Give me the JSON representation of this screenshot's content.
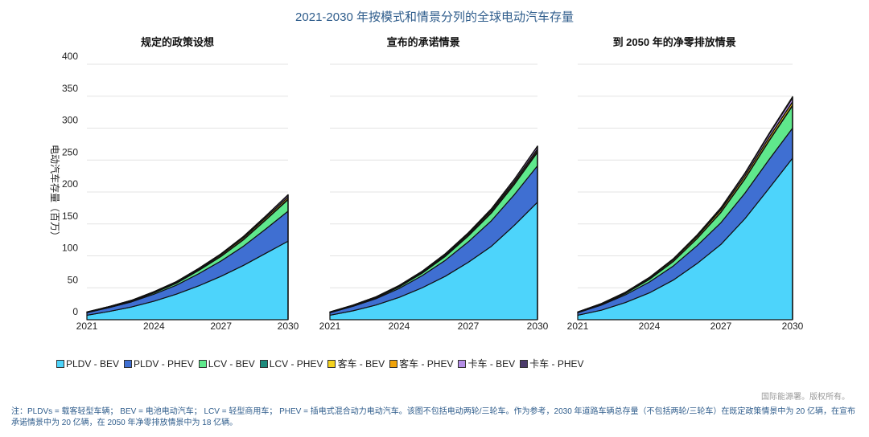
{
  "title": "2021-2030 年按模式和情景分列的全球电动汽车存量",
  "copyright": "国际能源署。版权所有。",
  "note": "注：PLDVs = 载客轻型车辆； BEV = 电池电动汽车； LCV = 轻型商用车； PHEV = 插电式混合动力电动汽车。该图不包括电动两轮/三轮车。作为参考，2030 年道路车辆总存量（不包括两轮/三轮车）在既定政策情景中为 20 亿辆，在宣布承诺情景中为 20 亿辆，在 2050 年净零排放情景中为 18 亿辆。",
  "chart_data": {
    "type": "area",
    "stacked": true,
    "ylabel": "电动汽车存量（百万）",
    "ylim": [
      0,
      400
    ],
    "yticks": [
      0,
      50,
      100,
      150,
      200,
      250,
      300,
      350,
      400
    ],
    "x": [
      2021,
      2022,
      2023,
      2024,
      2025,
      2026,
      2027,
      2028,
      2029,
      2030
    ],
    "xticks": [
      2021,
      2024,
      2027,
      2030
    ],
    "grid": true,
    "legend_position": "bottom",
    "legend": [
      {
        "name": "PLDV - BEV",
        "color": "#4dd4fb"
      },
      {
        "name": "PLDV - PHEV",
        "color": "#3f6fd2"
      },
      {
        "name": "LCV - BEV",
        "color": "#5fe88c"
      },
      {
        "name": "LCV - PHEV",
        "color": "#1d8a7c"
      },
      {
        "name": "客车 - BEV",
        "color": "#f4d21e"
      },
      {
        "name": "客车 - PHEV",
        "color": "#f0a30a"
      },
      {
        "name": "卡车 - BEV",
        "color": "#b48ee6"
      },
      {
        "name": "卡车 - PHEV",
        "color": "#4b3b6b"
      }
    ],
    "panels": [
      {
        "title": "规定的政策设想",
        "series": [
          [
            7,
            13,
            20,
            29,
            40,
            53,
            68,
            85,
            104,
            123
          ],
          [
            4,
            6,
            8,
            11,
            14,
            19,
            24,
            30,
            38,
            47
          ],
          [
            0.3,
            0.6,
            1,
            2,
            3,
            5,
            7,
            10,
            14,
            18
          ],
          [
            0.1,
            0.1,
            0.2,
            0.3,
            0.4,
            0.5,
            0.6,
            0.7,
            0.8,
            1
          ],
          [
            0.6,
            0.8,
            1,
            1.2,
            1.5,
            1.8,
            2.1,
            2.4,
            2.7,
            3
          ],
          [
            0.1,
            0.1,
            0.1,
            0.1,
            0.2,
            0.2,
            0.2,
            0.3,
            0.3,
            0.3
          ],
          [
            0.1,
            0.1,
            0.2,
            0.3,
            0.5,
            0.8,
            1.2,
            1.7,
            2.3,
            3
          ],
          [
            0,
            0,
            0,
            0.1,
            0.1,
            0.1,
            0.2,
            0.3,
            0.4,
            0.5
          ]
        ]
      },
      {
        "title": "宣布的承诺情景",
        "series": [
          [
            7,
            14,
            23,
            35,
            50,
            68,
            90,
            115,
            148,
            184
          ],
          [
            4,
            7,
            10,
            14,
            19,
            25,
            32,
            40,
            48,
            57
          ],
          [
            0.3,
            0.7,
            1.3,
            2.3,
            3.8,
            6,
            9,
            12,
            16,
            21
          ],
          [
            0.1,
            0.2,
            0.3,
            0.4,
            0.6,
            0.8,
            1,
            1.3,
            1.6,
            2
          ],
          [
            0.6,
            0.8,
            1,
            1.3,
            1.6,
            1.9,
            2.2,
            2.5,
            2.8,
            3
          ],
          [
            0.1,
            0.1,
            0.1,
            0.2,
            0.2,
            0.3,
            0.3,
            0.4,
            0.4,
            0.5
          ],
          [
            0.1,
            0.1,
            0.2,
            0.4,
            0.7,
            1.1,
            1.6,
            2.3,
            3.1,
            4
          ],
          [
            0,
            0,
            0,
            0.1,
            0.1,
            0.2,
            0.2,
            0.3,
            0.4,
            0.5
          ]
        ]
      },
      {
        "title": "到 2050 年的净零排放情景",
        "series": [
          [
            7,
            15,
            27,
            42,
            62,
            88,
            118,
            158,
            205,
            253
          ],
          [
            4,
            8,
            12,
            17,
            22,
            28,
            34,
            40,
            45,
            47
          ],
          [
            0.3,
            1,
            2,
            4,
            7,
            11,
            16,
            22,
            29,
            35
          ],
          [
            0.1,
            0.2,
            0.3,
            0.4,
            0.5,
            0.6,
            0.7,
            0.8,
            0.9,
            1
          ],
          [
            0.6,
            0.9,
            1.3,
            1.8,
            2.3,
            2.8,
            3.4,
            4,
            4.5,
            5
          ],
          [
            0.1,
            0.1,
            0.1,
            0.2,
            0.2,
            0.2,
            0.3,
            0.3,
            0.3,
            0.3
          ],
          [
            0.1,
            0.2,
            0.4,
            0.7,
            1.1,
            1.7,
            2.5,
            3.5,
            4.7,
            6
          ],
          [
            0,
            0.1,
            0.1,
            0.2,
            0.3,
            0.5,
            0.7,
            1,
            1.4,
            2
          ]
        ]
      }
    ]
  }
}
